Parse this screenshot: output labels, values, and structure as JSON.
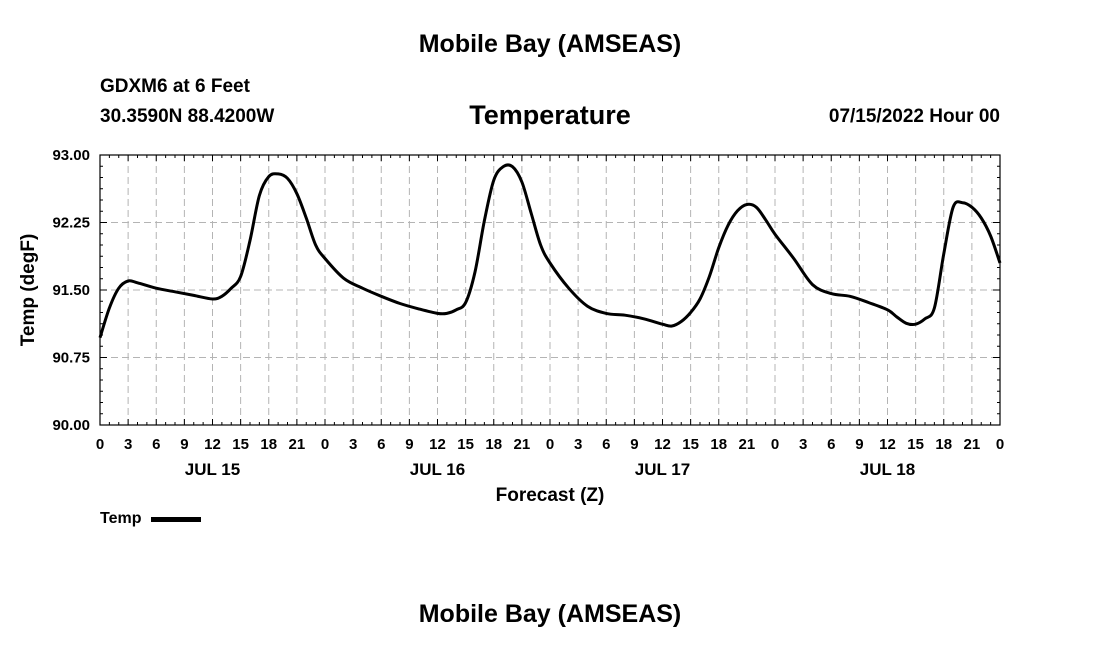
{
  "header": {
    "title": "Mobile Bay (AMSEAS)",
    "station": "GDXM6 at 6 Feet",
    "coords": "30.3590N  88.4200W",
    "chart_title": "Temperature",
    "run_time": "07/15/2022 Hour 00"
  },
  "footer": {
    "title": "Mobile Bay (AMSEAS)"
  },
  "legend": {
    "label": "Temp"
  },
  "chart_data": {
    "type": "line",
    "title": "Temperature",
    "xlabel": "Forecast (Z)",
    "ylabel": "Temp (degF)",
    "xlim": [
      0,
      96
    ],
    "ylim": [
      90.0,
      93.0
    ],
    "yticks": [
      "90.00",
      "90.75",
      "91.50",
      "92.25",
      "93.00"
    ],
    "xtick_step_hours": 3,
    "xtick_labels": [
      "0",
      "3",
      "6",
      "9",
      "12",
      "15",
      "18",
      "21",
      "0",
      "3",
      "6",
      "9",
      "12",
      "15",
      "18",
      "21",
      "0",
      "3",
      "6",
      "9",
      "12",
      "15",
      "18",
      "21",
      "0",
      "3",
      "6",
      "9",
      "12",
      "15",
      "18",
      "21",
      "0"
    ],
    "day_labels": [
      {
        "label": "JUL 15",
        "hour": 12
      },
      {
        "label": "JUL 16",
        "hour": 36
      },
      {
        "label": "JUL 17",
        "hour": 60
      },
      {
        "label": "JUL 18",
        "hour": 84
      }
    ],
    "grid": true,
    "legend_position": "bottom-left",
    "series": [
      {
        "name": "Temp",
        "color": "#000000",
        "x": [
          0,
          1,
          2,
          3,
          4,
          6,
          8,
          10,
          12,
          13,
          14,
          15,
          16,
          17,
          18,
          19,
          20,
          21,
          22,
          23,
          24,
          26,
          28,
          30,
          32,
          34,
          36,
          37,
          38,
          39,
          40,
          41,
          42,
          43,
          44,
          45,
          46,
          47,
          48,
          50,
          52,
          54,
          56,
          58,
          60,
          61,
          62,
          63,
          64,
          65,
          66,
          67,
          68,
          69,
          70,
          71,
          72,
          74,
          76,
          78,
          80,
          82,
          84,
          85,
          86,
          87,
          88,
          89,
          90,
          91,
          92,
          93,
          94,
          95,
          96
        ],
        "y": [
          90.97,
          91.3,
          91.52,
          91.6,
          91.58,
          91.52,
          91.48,
          91.44,
          91.4,
          91.43,
          91.52,
          91.65,
          92.05,
          92.55,
          92.76,
          92.79,
          92.74,
          92.57,
          92.3,
          92.0,
          91.85,
          91.63,
          91.52,
          91.43,
          91.35,
          91.29,
          91.24,
          91.24,
          91.28,
          91.36,
          91.7,
          92.27,
          92.72,
          92.87,
          92.87,
          92.7,
          92.35,
          92.0,
          91.8,
          91.52,
          91.32,
          91.24,
          91.22,
          91.18,
          91.12,
          91.1,
          91.15,
          91.25,
          91.4,
          91.65,
          91.97,
          92.22,
          92.38,
          92.45,
          92.42,
          92.28,
          92.12,
          91.85,
          91.56,
          91.46,
          91.43,
          91.36,
          91.28,
          91.2,
          91.13,
          91.12,
          91.18,
          91.3,
          91.9,
          92.42,
          92.47,
          92.42,
          92.3,
          92.1,
          91.8
        ]
      }
    ]
  }
}
